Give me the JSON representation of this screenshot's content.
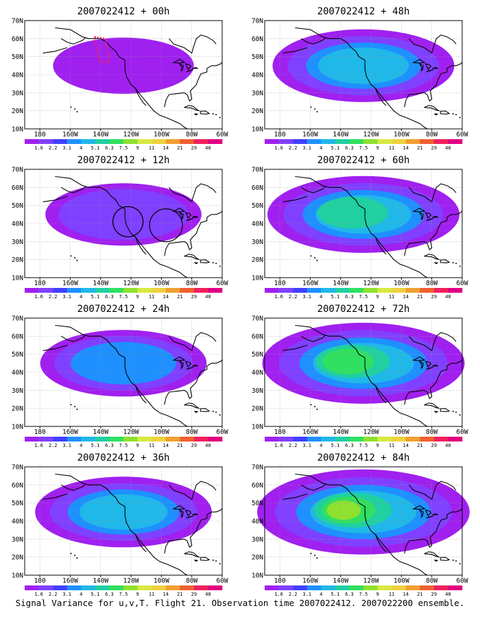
{
  "caption": "Signal Variance for u,v,T. Flight 21. Observation time 2007022412. 2007022200 ensemble.",
  "map": {
    "lon_range": [
      -190,
      -60
    ],
    "lat_range": [
      10,
      70
    ],
    "lon_tick_labels": [
      "180",
      "160W",
      "140W",
      "120W",
      "100W",
      "80W",
      "60W"
    ],
    "lat_tick_labels": [
      "10N",
      "20N",
      "30N",
      "40N",
      "50N",
      "60N",
      "70N"
    ],
    "gridlines": "dotted"
  },
  "colorbar": {
    "labels": [
      "1.6",
      "2.2",
      "3.1",
      "4",
      "5.1",
      "6.3",
      "7.5",
      "9",
      "11",
      "14",
      "21",
      "29",
      "40"
    ],
    "colors": [
      "#a020f0",
      "#8040ff",
      "#4040ff",
      "#1e90ff",
      "#20b8e8",
      "#20d0a0",
      "#30e060",
      "#90e030",
      "#d8e840",
      "#f0d040",
      "#f0a030",
      "#f06030",
      "#f02060",
      "#e00080"
    ]
  },
  "panels": [
    {
      "title": "2007022412 + 00h",
      "lead_hours": 0,
      "level": 0.15,
      "annotation": "flight-track"
    },
    {
      "title": "2007022412 + 48h",
      "lead_hours": 48,
      "level": 0.55,
      "annotation": "none"
    },
    {
      "title": "2007022412 + 12h",
      "lead_hours": 12,
      "level": 0.3,
      "annotation": "circles"
    },
    {
      "title": "2007022412 + 60h",
      "lead_hours": 60,
      "level": 0.65,
      "annotation": "none"
    },
    {
      "title": "2007022412 + 24h",
      "lead_hours": 24,
      "level": 0.4,
      "annotation": "none"
    },
    {
      "title": "2007022412 + 72h",
      "lead_hours": 72,
      "level": 0.75,
      "annotation": "none"
    },
    {
      "title": "2007022412 + 36h",
      "lead_hours": 36,
      "level": 0.5,
      "annotation": "none"
    },
    {
      "title": "2007022412 + 84h",
      "lead_hours": 84,
      "level": 0.85,
      "annotation": "none"
    }
  ]
}
